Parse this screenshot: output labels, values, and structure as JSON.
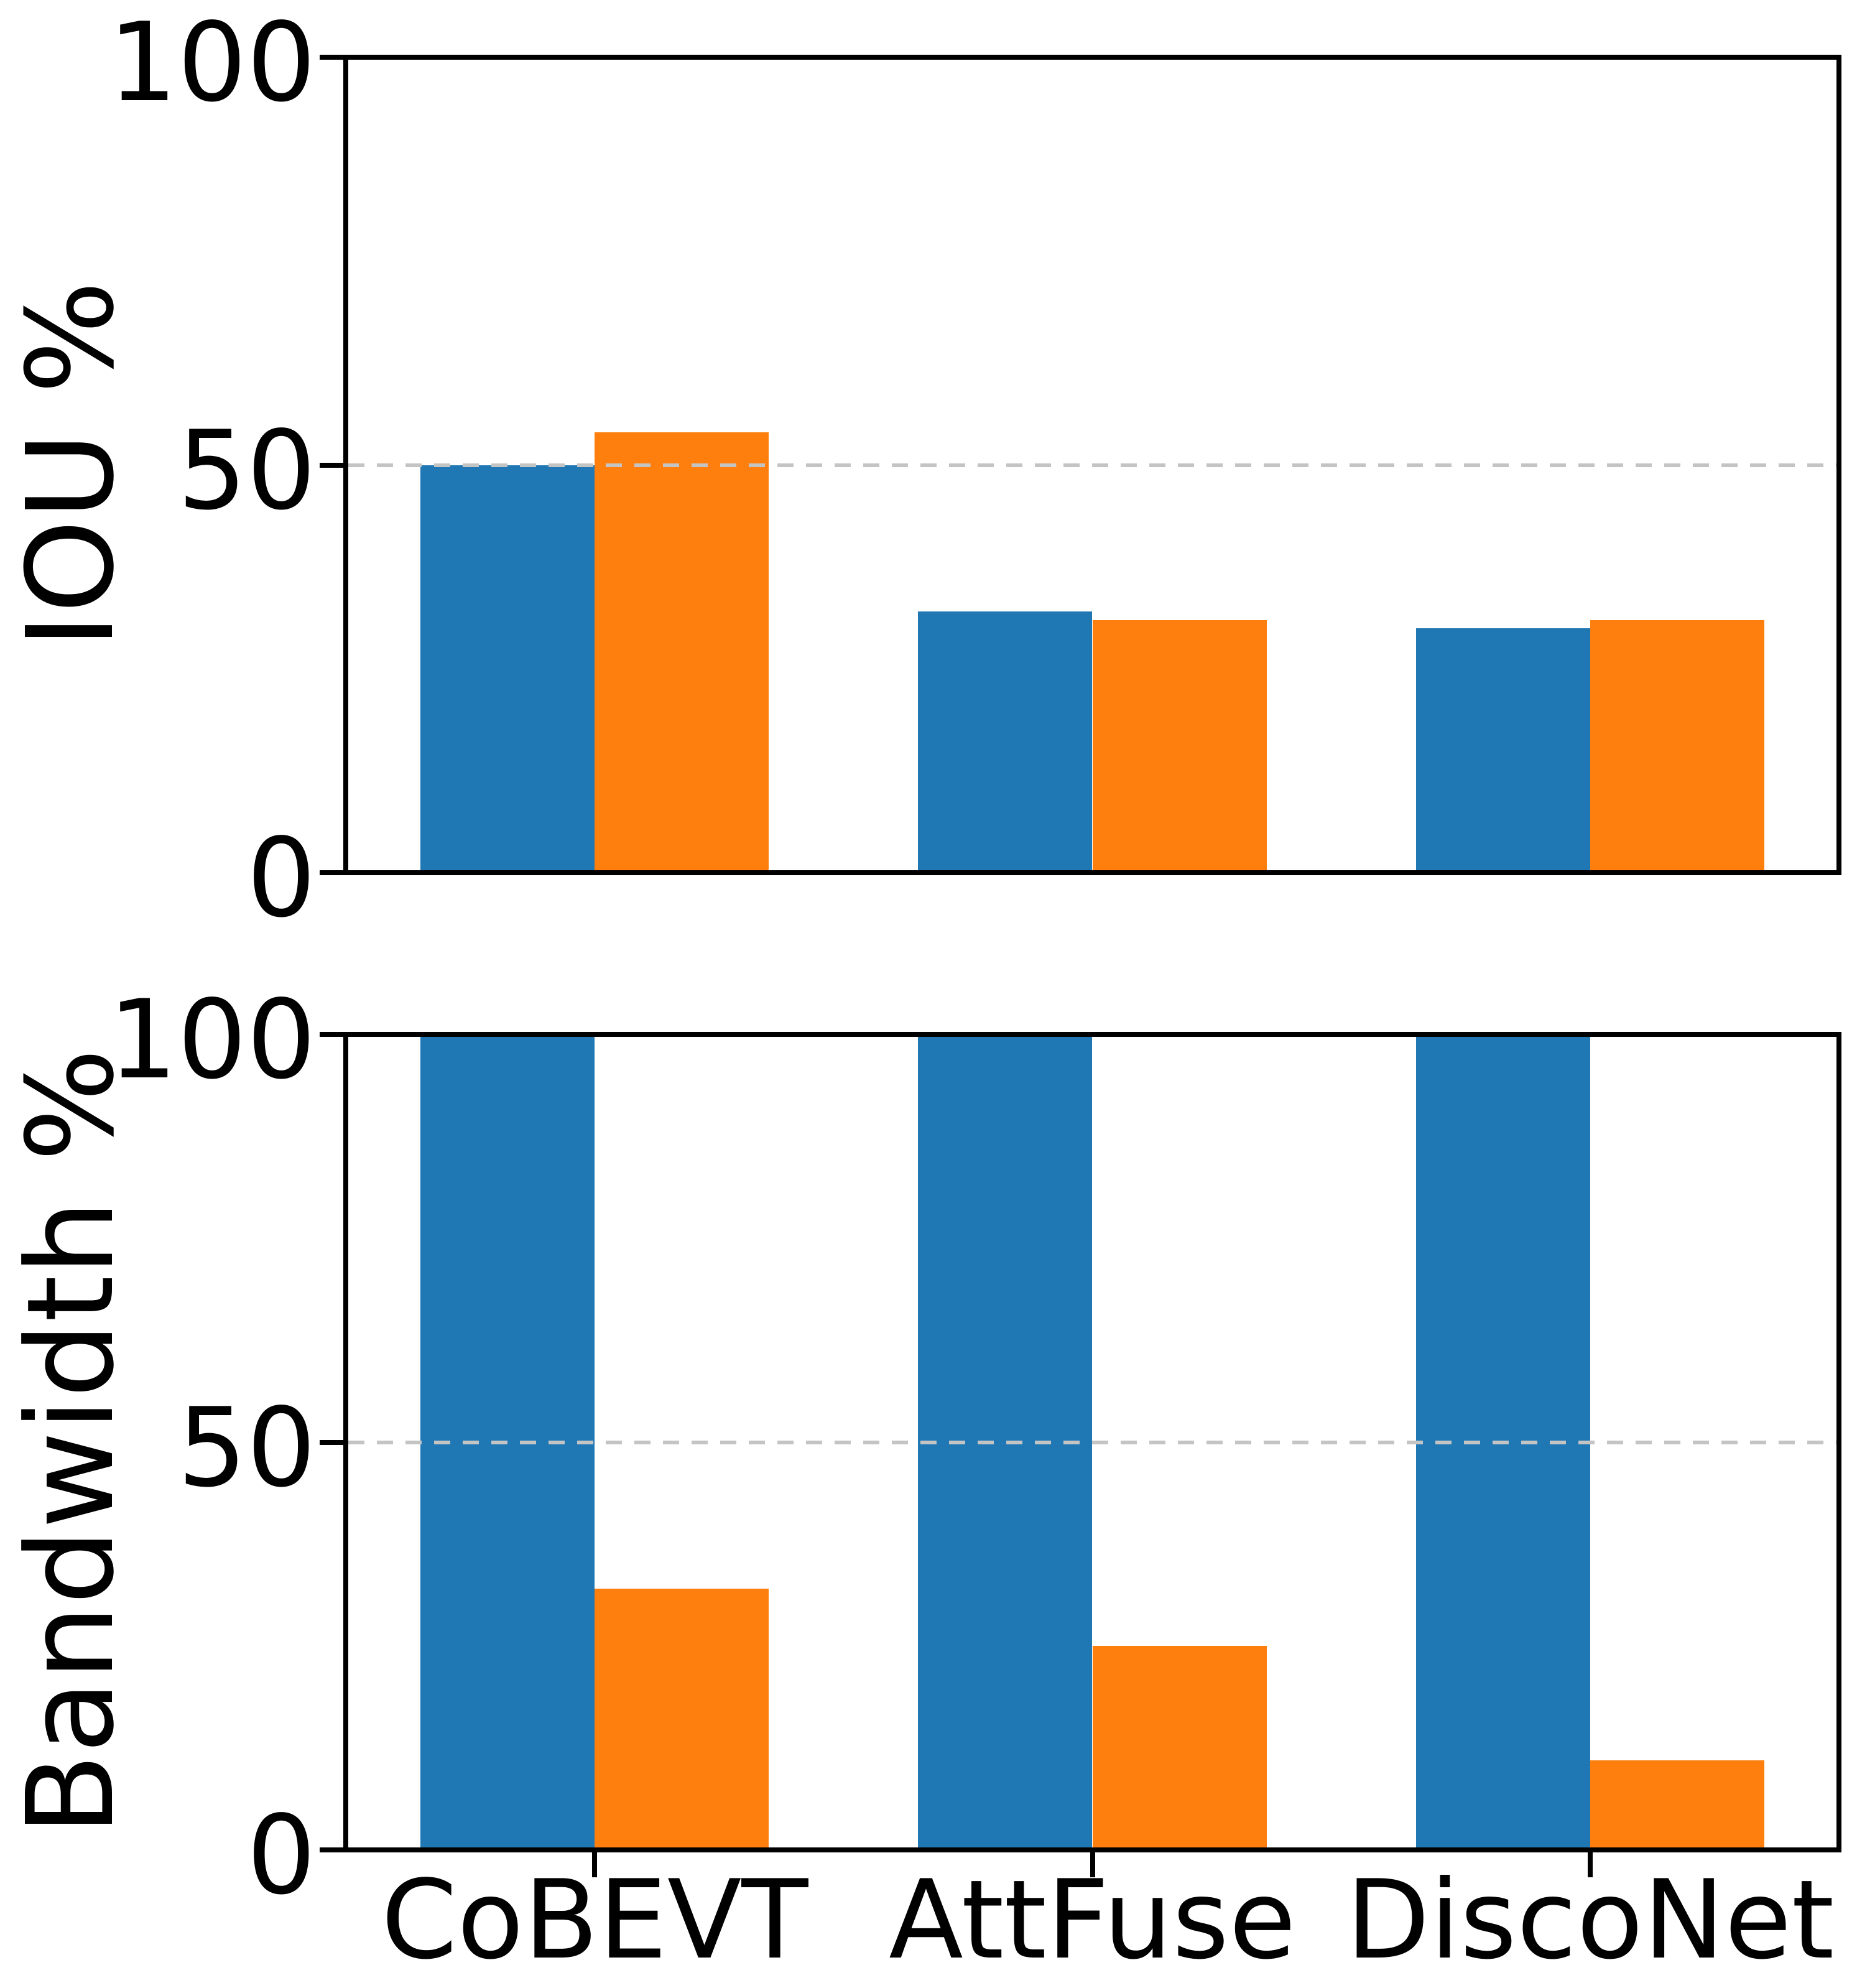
{
  "figure": {
    "background": "#ffffff",
    "spine_color": "#000000",
    "grid_color": "#c4c4c4"
  },
  "chart_data": [
    {
      "type": "bar",
      "panel": "top",
      "ylabel": "IOU %",
      "categories": [
        "CoBEVT",
        "AttFuse",
        "DiscoNet"
      ],
      "series": [
        {
          "name": "blue",
          "color": "#1f77b4",
          "values": [
            50,
            32,
            30
          ]
        },
        {
          "name": "orange",
          "color": "#ff7f0e",
          "values": [
            54,
            31,
            31
          ]
        }
      ],
      "ylim": [
        0,
        100
      ],
      "yticks": [
        0,
        50,
        100
      ],
      "grid_values": [
        50
      ],
      "grid_style": "dashed",
      "legend": "none",
      "show_x_labels": false
    },
    {
      "type": "bar",
      "panel": "bottom",
      "ylabel": "Bandwidth %",
      "categories": [
        "CoBEVT",
        "AttFuse",
        "DiscoNet"
      ],
      "series": [
        {
          "name": "blue",
          "color": "#1f77b4",
          "values": [
            100,
            100,
            100
          ]
        },
        {
          "name": "orange",
          "color": "#ff7f0e",
          "values": [
            32,
            25,
            11
          ]
        }
      ],
      "ylim": [
        0,
        100
      ],
      "yticks": [
        0,
        50,
        100
      ],
      "grid_values": [
        50
      ],
      "grid_style": "dashed",
      "legend": "none",
      "show_x_labels": true
    }
  ]
}
